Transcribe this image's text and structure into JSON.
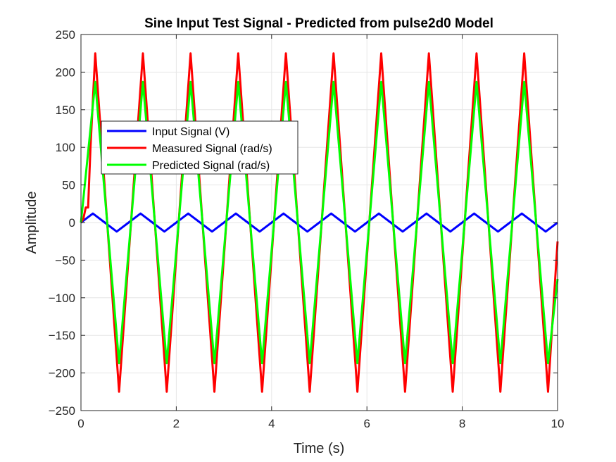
{
  "chart_data": {
    "type": "line",
    "title": "Sine Input Test Signal - Predicted from pulse2d0 Model",
    "xlabel": "Time (s)",
    "ylabel": "Amplitude",
    "xlim": [
      0,
      10
    ],
    "ylim": [
      -250,
      250
    ],
    "xticks": [
      0,
      2,
      4,
      6,
      8,
      10
    ],
    "yticks": [
      250,
      200,
      150,
      100,
      50,
      0,
      -50,
      -100,
      -150,
      -200,
      -250
    ],
    "grid": true,
    "legend_position": "upper-left",
    "series": [
      {
        "name": "Input Signal (V)",
        "color": "#0000ff",
        "x": [
          0,
          0.25,
          0.5,
          0.75,
          1.0,
          1.25,
          1.5,
          1.75,
          2.0,
          2.25,
          2.5,
          2.75,
          3.0,
          3.25,
          3.5,
          3.75,
          4.0,
          4.25,
          4.5,
          4.75,
          5.0,
          5.25,
          5.5,
          5.75,
          6.0,
          6.25,
          6.5,
          6.75,
          7.0,
          7.25,
          7.5,
          7.75,
          8.0,
          8.25,
          8.5,
          8.75,
          9.0,
          9.25,
          9.5,
          9.75,
          10.0
        ],
        "y": [
          0,
          12,
          0,
          -12,
          0,
          12,
          0,
          -12,
          0,
          12,
          0,
          -12,
          0,
          12,
          0,
          -12,
          0,
          12,
          0,
          -12,
          0,
          12,
          0,
          -12,
          0,
          12,
          0,
          -12,
          0,
          12,
          0,
          -12,
          0,
          12,
          0,
          -12,
          0,
          12,
          0,
          -12,
          0
        ]
      },
      {
        "name": "Measured Signal (rad/s)",
        "color": "#ff0000",
        "x": [
          0,
          0.05,
          0.1,
          0.15,
          0.2,
          0.3,
          0.55,
          0.8,
          1.05,
          1.3,
          1.55,
          1.8,
          2.05,
          2.3,
          2.55,
          2.8,
          3.05,
          3.3,
          3.55,
          3.8,
          4.05,
          4.3,
          4.55,
          4.8,
          5.05,
          5.3,
          5.55,
          5.8,
          6.05,
          6.3,
          6.55,
          6.8,
          7.05,
          7.3,
          7.55,
          7.8,
          8.05,
          8.3,
          8.55,
          8.8,
          9.05,
          9.3,
          9.55,
          9.8,
          10.0
        ],
        "y": [
          0,
          5,
          20,
          20,
          100,
          225,
          0,
          -225,
          0,
          225,
          0,
          -225,
          0,
          225,
          0,
          -225,
          0,
          225,
          0,
          -225,
          0,
          225,
          0,
          -225,
          0,
          225,
          0,
          -225,
          0,
          225,
          0,
          -225,
          0,
          225,
          0,
          -225,
          0,
          225,
          0,
          -225,
          0,
          225,
          0,
          -225,
          -25
        ]
      },
      {
        "name": "Predicted Signal (rad/s)",
        "color": "#00ff00",
        "x": [
          0,
          0.3,
          0.55,
          0.8,
          1.05,
          1.3,
          1.55,
          1.8,
          2.05,
          2.3,
          2.55,
          2.8,
          3.05,
          3.3,
          3.55,
          3.8,
          4.05,
          4.3,
          4.55,
          4.8,
          5.05,
          5.3,
          5.55,
          5.8,
          6.05,
          6.3,
          6.55,
          6.8,
          7.05,
          7.3,
          7.55,
          7.8,
          8.05,
          8.3,
          8.55,
          8.8,
          9.05,
          9.3,
          9.55,
          9.8,
          10.0
        ],
        "y": [
          0,
          187,
          0,
          -187,
          0,
          187,
          0,
          -187,
          0,
          187,
          0,
          -187,
          0,
          187,
          0,
          -187,
          0,
          187,
          0,
          -187,
          0,
          187,
          0,
          -187,
          0,
          187,
          0,
          -187,
          0,
          187,
          0,
          -187,
          0,
          187,
          0,
          -187,
          0,
          187,
          0,
          -187,
          -75
        ]
      }
    ]
  }
}
